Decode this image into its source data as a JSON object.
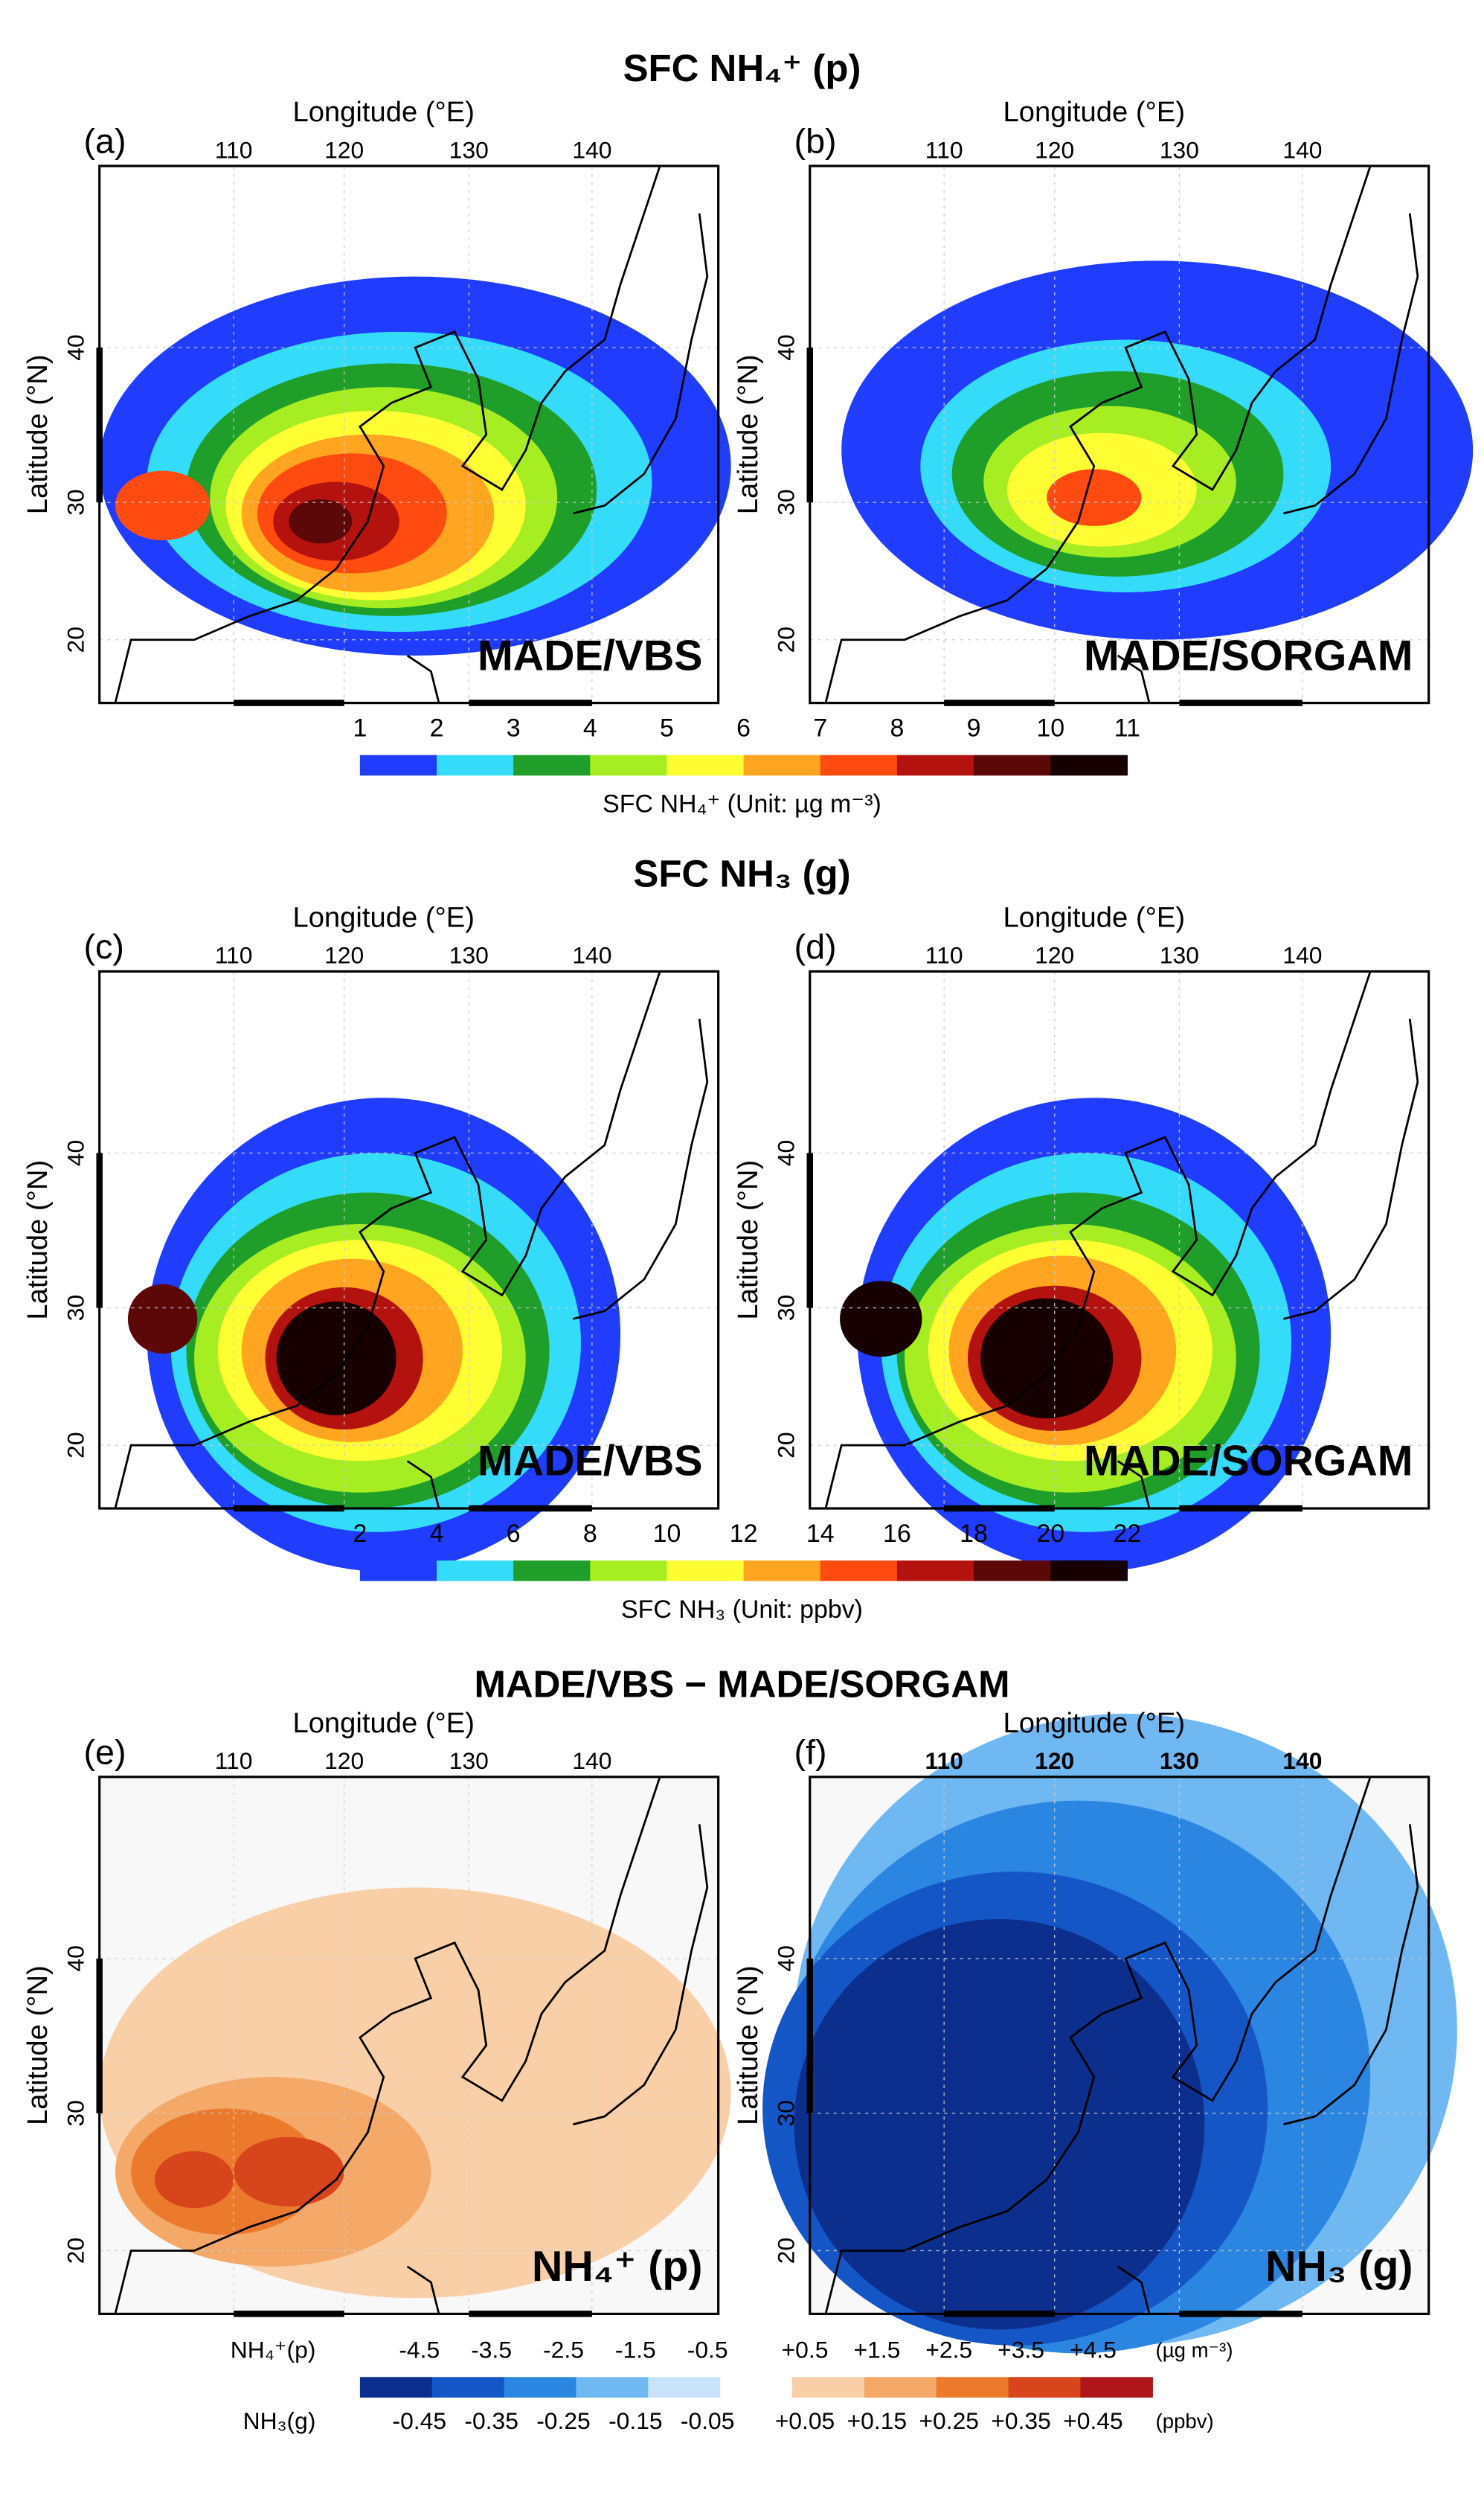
{
  "axes": {
    "x_label": "Longitude (°E)",
    "y_label": "Latitude (°N)",
    "xticks": [
      "110",
      "120",
      "130",
      "140"
    ],
    "yticks": [
      "20",
      "30",
      "40"
    ]
  },
  "rows": [
    {
      "title": "SFC NH₄⁺ (p)",
      "panels": [
        {
          "label": "(a)",
          "name": "MADE/VBS"
        },
        {
          "label": "(b)",
          "name": "MADE/SORGAM"
        }
      ],
      "colorbar": {
        "colors": [
          "#1f3cff",
          "#35dcfa",
          "#1f9e2a",
          "#a6ee22",
          "#ffff33",
          "#ffa51f",
          "#ff4a10",
          "#b3120e",
          "#5c0808",
          "#160000"
        ],
        "ticks": [
          "1",
          "2",
          "3",
          "4",
          "5",
          "6",
          "7",
          "8",
          "9",
          "10",
          "11"
        ],
        "caption": "SFC NH₄⁺ (Unit: µg m⁻³)"
      }
    },
    {
      "title": "SFC NH₃ (g)",
      "panels": [
        {
          "label": "(c)",
          "name": "MADE/VBS"
        },
        {
          "label": "(d)",
          "name": "MADE/SORGAM"
        }
      ],
      "colorbar": {
        "colors": [
          "#1f3cff",
          "#35dcfa",
          "#1f9e2a",
          "#a6ee22",
          "#ffff33",
          "#ffa51f",
          "#ff4a10",
          "#b3120e",
          "#5c0808",
          "#160000"
        ],
        "ticks": [
          "2",
          "4",
          "6",
          "8",
          "10",
          "12",
          "14",
          "16",
          "18",
          "20",
          "22"
        ],
        "caption": "SFC NH₃ (Unit: ppbv)"
      }
    },
    {
      "title": "MADE/VBS − MADE/SORGAM",
      "panels": [
        {
          "label": "(e)",
          "name": "NH₄⁺ (p)"
        },
        {
          "label": "(f)",
          "name": "NH₃ (g)"
        }
      ],
      "colorbar": {
        "colors": [
          "#0c2f8e",
          "#1556c6",
          "#2b86e2",
          "#6fb8f2",
          "#c9e4fa",
          "#ffffff",
          "#f9cfa8",
          "#f4a968",
          "#ec7a2c",
          "#d6451b",
          "#ae171a"
        ],
        "rows": [
          {
            "name": "NH₄⁺(p)",
            "ticks": [
              "-4.5",
              "-3.5",
              "-2.5",
              "-1.5",
              "-0.5",
              "+0.5",
              "+1.5",
              "+2.5",
              "+3.5",
              "+4.5"
            ],
            "unit": "(µg m⁻³)"
          },
          {
            "name": "NH₃(g)",
            "ticks": [
              "-0.45",
              "-0.35",
              "-0.25",
              "-0.15",
              "-0.05",
              "+0.05",
              "+0.15",
              "+0.25",
              "+0.35",
              "+0.45"
            ],
            "unit": "(ppbv)"
          }
        ]
      }
    }
  ]
}
